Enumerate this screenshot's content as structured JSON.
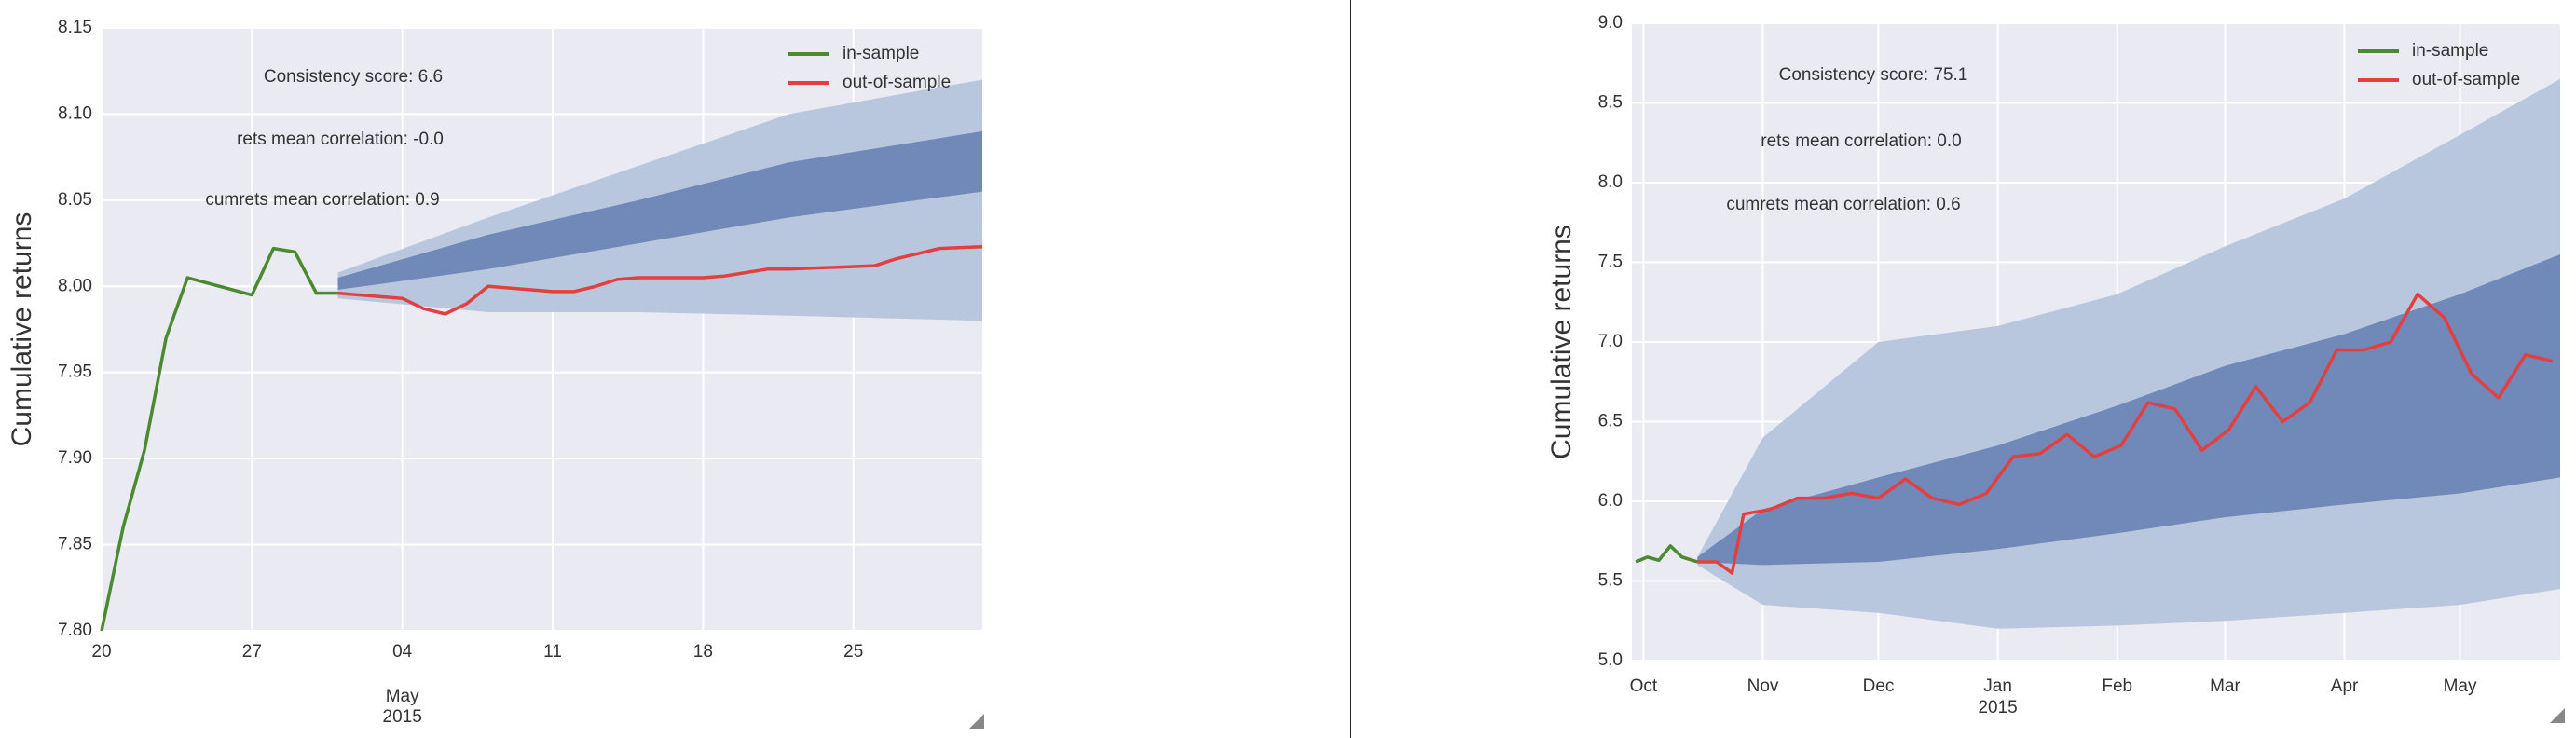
{
  "chart_data": [
    {
      "type": "line",
      "ylabel": "Cumulative returns",
      "annotations": [
        "Consistency score: 6.6",
        "rets mean correlation: -0.0",
        "cumrets mean correlation: 0.9"
      ],
      "grid": true,
      "legend": "upper right",
      "ylim": [
        7.8,
        8.15
      ],
      "yticks": [
        {
          "value": 7.8,
          "label": "7.80"
        },
        7.85,
        {
          "value": 7.9,
          "label": "7.90"
        },
        7.95,
        {
          "value": 8.0,
          "label": "8.00"
        },
        8.05,
        {
          "value": 8.1,
          "label": "8.10"
        },
        8.15
      ],
      "xlim": [
        "2015-04-20",
        "2015-05-31"
      ],
      "xticks": [
        {
          "value": "2015-04-20",
          "label": "20"
        },
        {
          "value": "2015-04-27",
          "label": "27"
        },
        {
          "value": "2015-05-04",
          "label": "04"
        },
        {
          "value": "2015-05-11",
          "label": "11"
        },
        {
          "value": "2015-05-18",
          "label": "18"
        },
        {
          "value": "2015-05-25",
          "label": "25"
        }
      ],
      "x_period_labels": [
        {
          "value": "2015-05-04",
          "label": "May"
        }
      ],
      "x_year_label": {
        "value": "2015-05-04",
        "label": "2015"
      },
      "bands": [
        {
          "color": "#b9c7de",
          "x": [
            "2015-05-01",
            "2015-05-08",
            "2015-05-15",
            "2015-05-22",
            "2015-05-31"
          ],
          "upper": [
            8.008,
            8.04,
            8.07,
            8.1,
            8.12
          ],
          "lower": [
            7.993,
            7.985,
            7.985,
            7.983,
            7.98
          ]
        },
        {
          "color": "#7189b8",
          "x": [
            "2015-05-01",
            "2015-05-08",
            "2015-05-15",
            "2015-05-22",
            "2015-05-31"
          ],
          "upper": [
            8.005,
            8.03,
            8.05,
            8.072,
            8.09
          ],
          "lower": [
            7.998,
            8.01,
            8.025,
            8.04,
            8.055
          ]
        }
      ],
      "series": [
        {
          "name": "in-sample",
          "color": "#4a8a30",
          "x": [
            "2015-04-20",
            "2015-04-21",
            "2015-04-22",
            "2015-04-23",
            "2015-04-24",
            "2015-04-27",
            "2015-04-28",
            "2015-04-29",
            "2015-04-30",
            "2015-05-01"
          ],
          "values": [
            7.8,
            7.86,
            7.905,
            7.97,
            8.005,
            7.995,
            8.022,
            8.02,
            7.996,
            7.996
          ]
        },
        {
          "name": "out-of-sample",
          "color": "#e24040",
          "x": [
            "2015-05-01",
            "2015-05-04",
            "2015-05-05",
            "2015-05-06",
            "2015-05-07",
            "2015-05-08",
            "2015-05-11",
            "2015-05-12",
            "2015-05-13",
            "2015-05-14",
            "2015-05-15",
            "2015-05-18",
            "2015-05-19",
            "2015-05-20",
            "2015-05-21",
            "2015-05-22",
            "2015-05-26",
            "2015-05-27",
            "2015-05-28",
            "2015-05-29",
            "2015-05-31"
          ],
          "values": [
            7.996,
            7.993,
            7.987,
            7.984,
            7.99,
            8.0,
            7.997,
            7.997,
            8.0,
            8.004,
            8.005,
            8.005,
            8.006,
            8.008,
            8.01,
            8.01,
            8.012,
            8.016,
            8.019,
            8.022,
            8.023
          ]
        }
      ]
    },
    {
      "type": "line",
      "ylabel": "Cumulative returns",
      "annotations": [
        "Consistency score: 75.1",
        "rets mean correlation: 0.0",
        "cumrets mean correlation: 0.6"
      ],
      "grid": true,
      "legend": "upper right",
      "ylim": [
        5.0,
        9.0
      ],
      "yticks": [
        {
          "value": 5.0,
          "label": "5.0"
        },
        5.5,
        {
          "value": 6.0,
          "label": "6.0"
        },
        6.5,
        {
          "value": 7.0,
          "label": "7.0"
        },
        7.5,
        {
          "value": 8.0,
          "label": "8.0"
        },
        8.5,
        {
          "value": 9.0,
          "label": "9.0"
        }
      ],
      "xlim": [
        "2014-09-28",
        "2015-05-27"
      ],
      "xticks": [
        {
          "value": "2014-10-01",
          "label": "Oct"
        },
        {
          "value": "2014-11-01",
          "label": "Nov"
        },
        {
          "value": "2014-12-01",
          "label": "Dec"
        },
        {
          "value": "2015-01-01",
          "label": "Jan"
        },
        {
          "value": "2015-02-01",
          "label": "Feb"
        },
        {
          "value": "2015-03-01",
          "label": "Mar"
        },
        {
          "value": "2015-04-01",
          "label": "Apr"
        },
        {
          "value": "2015-05-01",
          "label": "May"
        }
      ],
      "x_period_labels": [],
      "x_year_label": {
        "value": "2015-01-01",
        "label": "2015"
      },
      "bands": [
        {
          "color": "#b9c7de",
          "x": [
            "2014-10-15",
            "2014-11-01",
            "2014-12-01",
            "2015-01-01",
            "2015-02-01",
            "2015-03-01",
            "2015-04-01",
            "2015-05-01",
            "2015-05-27"
          ],
          "upper": [
            5.65,
            6.4,
            7.0,
            7.1,
            7.3,
            7.6,
            7.9,
            8.3,
            8.65
          ],
          "lower": [
            5.6,
            5.35,
            5.3,
            5.2,
            5.22,
            5.25,
            5.3,
            5.35,
            5.45
          ]
        },
        {
          "color": "#7189b8",
          "x": [
            "2014-10-15",
            "2014-11-01",
            "2014-12-01",
            "2015-01-01",
            "2015-02-01",
            "2015-03-01",
            "2015-04-01",
            "2015-05-01",
            "2015-05-27"
          ],
          "upper": [
            5.65,
            5.95,
            6.15,
            6.35,
            6.6,
            6.85,
            7.05,
            7.3,
            7.55
          ],
          "lower": [
            5.62,
            5.6,
            5.62,
            5.7,
            5.8,
            5.9,
            5.98,
            6.05,
            6.15
          ]
        }
      ],
      "series": [
        {
          "name": "in-sample",
          "color": "#4a8a30",
          "x": [
            "2014-09-29",
            "2014-10-02",
            "2014-10-05",
            "2014-10-08",
            "2014-10-11",
            "2014-10-15"
          ],
          "values": [
            5.62,
            5.65,
            5.63,
            5.72,
            5.65,
            5.62
          ]
        },
        {
          "name": "out-of-sample",
          "color": "#e24040",
          "x": [
            "2014-10-15",
            "2014-10-20",
            "2014-10-24",
            "2014-10-27",
            "2014-11-03",
            "2014-11-10",
            "2014-11-17",
            "2014-11-24",
            "2014-12-01",
            "2014-12-08",
            "2014-12-15",
            "2014-12-22",
            "2014-12-29",
            "2015-01-05",
            "2015-01-12",
            "2015-01-19",
            "2015-01-26",
            "2015-02-02",
            "2015-02-09",
            "2015-02-16",
            "2015-02-23",
            "2015-03-02",
            "2015-03-09",
            "2015-03-16",
            "2015-03-23",
            "2015-03-30",
            "2015-04-06",
            "2015-04-13",
            "2015-04-20",
            "2015-04-27",
            "2015-05-04",
            "2015-05-11",
            "2015-05-18",
            "2015-05-25"
          ],
          "values": [
            5.62,
            5.62,
            5.55,
            5.92,
            5.95,
            6.02,
            6.02,
            6.05,
            6.02,
            6.14,
            6.02,
            5.98,
            6.05,
            6.28,
            6.3,
            6.42,
            6.28,
            6.35,
            6.62,
            6.58,
            6.32,
            6.45,
            6.72,
            6.5,
            6.62,
            6.95,
            6.95,
            7.0,
            7.3,
            7.15,
            6.8,
            6.65,
            6.92,
            6.88
          ]
        }
      ]
    }
  ]
}
